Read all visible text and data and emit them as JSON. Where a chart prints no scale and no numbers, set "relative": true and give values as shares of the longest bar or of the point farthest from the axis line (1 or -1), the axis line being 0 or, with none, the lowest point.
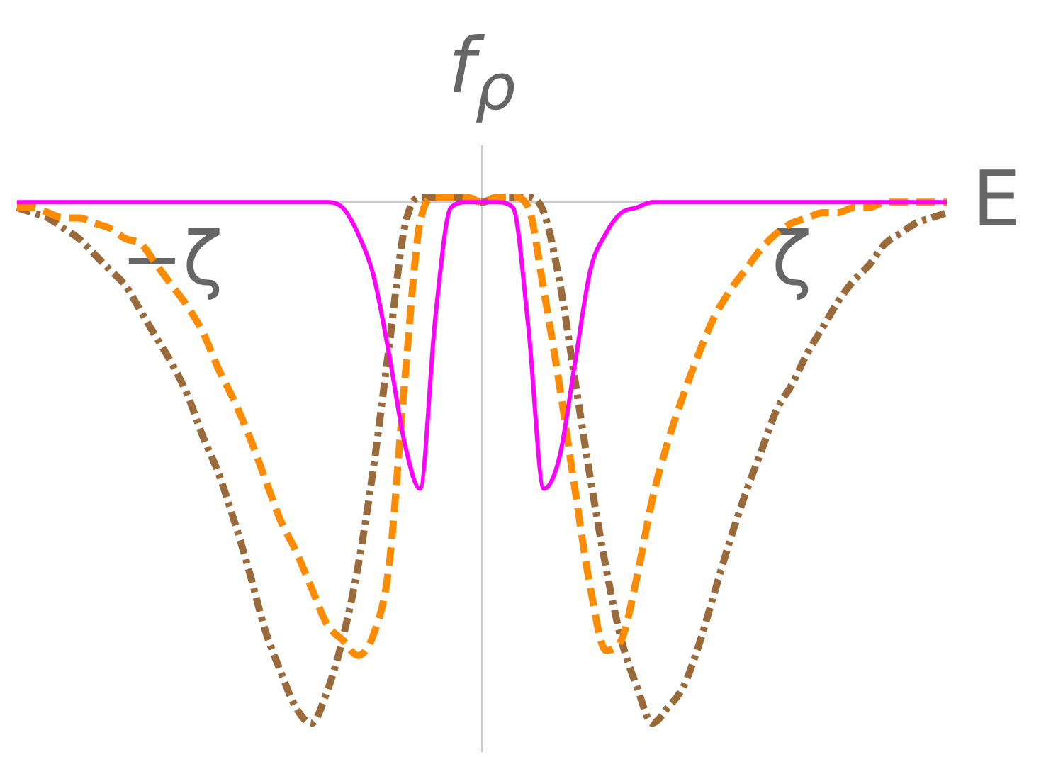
{
  "chart_data": {
    "type": "line",
    "xlabel": "E",
    "ylabel": "f$_{ρ}$",
    "relative": true,
    "legend": false,
    "grid": false,
    "marker": "none",
    "categories": [
      null,
      null,
      null,
      null,
      null,
      null,
      null,
      null,
      null,
      null,
      "−ζ",
      null,
      null,
      null,
      null,
      null,
      null,
      null,
      null,
      null,
      null,
      null,
      null,
      null,
      null,
      null,
      null,
      null,
      null,
      null,
      null,
      null,
      null,
      null,
      null,
      null,
      null,
      null,
      null,
      null,
      null,
      null,
      null,
      null,
      null,
      null,
      null,
      null,
      null,
      null,
      "ζ",
      null,
      null,
      null,
      null,
      null,
      null,
      null,
      null,
      null,
      null
    ],
    "series": [
      {
        "color": "#ff00ff",
        "line_style": "solid",
        "values": [
          0,
          0,
          0,
          0,
          0,
          0,
          0,
          0,
          0,
          0,
          0,
          0,
          0,
          0,
          0,
          0,
          0,
          0,
          0,
          0,
          0,
          -0.01,
          -0.06,
          -0.14,
          -0.29,
          -0.46,
          -0.55,
          -0.22,
          -0.01,
          0,
          0,
          0,
          -0.01,
          -0.24,
          -0.55,
          -0.49,
          -0.31,
          -0.13,
          -0.06,
          -0.02,
          -0.01,
          0,
          0,
          0,
          0,
          0,
          0,
          0,
          0,
          0,
          0,
          0,
          0,
          0,
          0,
          0,
          0,
          0,
          0,
          0,
          0
        ]
      },
      {
        "color": "#ff8c00",
        "line_style": "dashed",
        "values": [
          -0.01,
          -0.01,
          -0.02,
          -0.03,
          -0.03,
          -0.04,
          -0.05,
          -0.07,
          -0.08,
          -0.12,
          -0.16,
          -0.2,
          -0.25,
          -0.32,
          -0.38,
          -0.45,
          -0.53,
          -0.61,
          -0.67,
          -0.74,
          -0.81,
          -0.84,
          -0.87,
          -0.83,
          -0.7,
          -0.35,
          -0.04,
          0.01,
          0.01,
          0.01,
          0,
          0.01,
          0.01,
          -0.01,
          -0.17,
          -0.35,
          -0.55,
          -0.74,
          -0.86,
          -0.84,
          -0.72,
          -0.57,
          -0.46,
          -0.37,
          -0.29,
          -0.22,
          -0.17,
          -0.13,
          -0.09,
          -0.06,
          -0.04,
          -0.03,
          -0.02,
          -0.02,
          -0.01,
          -0.01,
          0,
          0,
          0,
          0,
          0
        ]
      },
      {
        "color": "#9b6a3a",
        "line_style": "dotted",
        "values": [
          -0.01,
          -0.02,
          -0.03,
          -0.05,
          -0.07,
          -0.1,
          -0.13,
          -0.16,
          -0.21,
          -0.26,
          -0.31,
          -0.37,
          -0.45,
          -0.52,
          -0.61,
          -0.71,
          -0.82,
          -0.9,
          -0.97,
          -1,
          -0.94,
          -0.84,
          -0.7,
          -0.51,
          -0.28,
          -0.05,
          0.01,
          0.01,
          0.01,
          0.01,
          0,
          0.01,
          0.01,
          0.01,
          -0.02,
          -0.15,
          -0.34,
          -0.53,
          -0.7,
          -0.84,
          -0.93,
          -1,
          -0.97,
          -0.93,
          -0.85,
          -0.75,
          -0.65,
          -0.56,
          -0.48,
          -0.4,
          -0.35,
          -0.29,
          -0.24,
          -0.19,
          -0.15,
          -0.12,
          -0.08,
          -0.06,
          -0.04,
          -0.03,
          -0.02
        ]
      }
    ]
  }
}
